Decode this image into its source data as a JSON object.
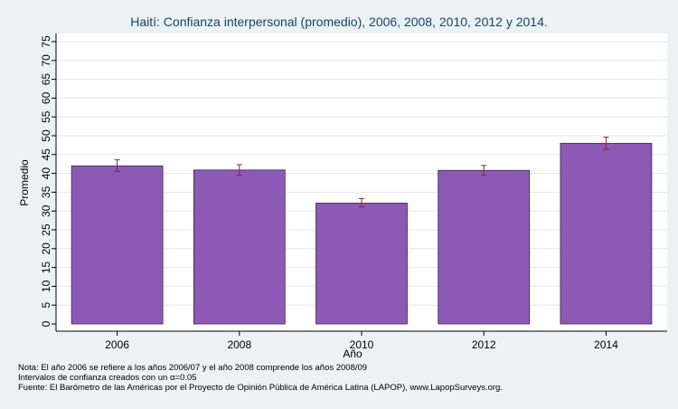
{
  "chart_data": {
    "type": "bar",
    "title": "Haití: Confianza interpersonal (promedio), 2006, 2008, 2010, 2012 y 2014.",
    "xlabel": "Año",
    "ylabel": "Promedio",
    "categories": [
      "2006",
      "2008",
      "2010",
      "2012",
      "2014"
    ],
    "values": [
      42.0,
      40.9,
      32.1,
      40.8,
      48.0
    ],
    "ci_low": [
      40.5,
      39.5,
      31.0,
      39.5,
      46.4
    ],
    "ci_high": [
      43.6,
      42.3,
      33.3,
      42.1,
      49.6
    ],
    "ylim": [
      0,
      75
    ],
    "yticks": [
      "0",
      "5",
      "10",
      "15",
      "20",
      "25",
      "30",
      "35",
      "40",
      "45",
      "50",
      "55",
      "60",
      "65",
      "70",
      "75"
    ],
    "grid": true,
    "colors": {
      "bar": "#8c59b4",
      "bar_edge": "#3a2a4a",
      "error_bar": "#8b2a2a",
      "grid": "#e6e6e6",
      "title": "#1f3f6e",
      "page_background": "#eaf2f3",
      "plot_background": "#ffffff"
    }
  },
  "notes": {
    "line1": "Nota: El año 2006 se refiere a los años 2006/07 y el año 2008 comprende los años 2008/09",
    "line2": "Intervalos de confianza creados con un α=0.05",
    "line3": "Fuente: El Barómetro de las Américas por el Proyecto de Opinión Pública de América Latina (LAPOP), www.LapopSurveys.org."
  }
}
